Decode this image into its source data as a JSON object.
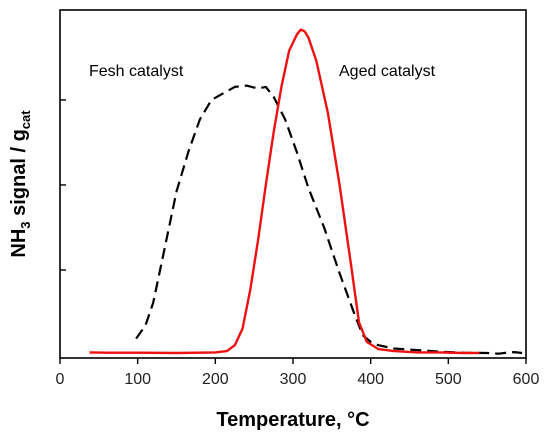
{
  "chart_data": {
    "type": "line",
    "title": "",
    "xlabel": "Temperature, °C",
    "ylabel": {
      "prefix": "NH",
      "prefix_sub": "3",
      "middle": " signal / g",
      "suffix_sub": "cat"
    },
    "xlim": [
      0,
      600
    ],
    "ylim": [
      0,
      1
    ],
    "x_ticks": [
      0,
      100,
      200,
      300,
      400,
      500,
      600
    ],
    "x_tick_labels": [
      "0",
      "100",
      "200",
      "300",
      "400",
      "500",
      "600"
    ],
    "y_ticks": [
      0.26,
      0.52,
      0.78
    ],
    "y_tick_labels_shown": false,
    "grid": false,
    "legend": "none",
    "annotations": [
      {
        "text": "Fesh catalyst",
        "x": 90,
        "y": 0.855
      },
      {
        "text": "Aged catalyst",
        "x": 332,
        "y": 0.855
      }
    ],
    "series": [
      {
        "color": "#000000",
        "dash": true,
        "x": [
          98,
          110,
          120,
          135,
          150,
          165,
          180,
          195,
          210,
          225,
          240,
          255,
          265,
          275,
          290,
          305,
          320,
          340,
          360,
          380,
          390,
          400,
          410,
          430,
          460,
          490,
          520,
          550,
          565,
          575,
          585,
          595
        ],
        "values": [
          0.05,
          0.09,
          0.16,
          0.33,
          0.5,
          0.62,
          0.72,
          0.78,
          0.8,
          0.82,
          0.824,
          0.815,
          0.82,
          0.79,
          0.72,
          0.62,
          0.51,
          0.39,
          0.25,
          0.12,
          0.06,
          0.04,
          0.03,
          0.02,
          0.015,
          0.01,
          0.007,
          0.006,
          0.004,
          0.007,
          0.009,
          0.006
        ]
      },
      {
        "color": "#ee1111",
        "dash": false,
        "x": [
          38,
          60,
          100,
          150,
          200,
          215,
          225,
          235,
          245,
          255,
          265,
          275,
          285,
          295,
          305,
          310,
          315,
          320,
          330,
          345,
          360,
          375,
          385,
          395,
          410,
          430,
          460,
          490,
          520,
          540
        ],
        "values": [
          0.008,
          0.007,
          0.007,
          0.006,
          0.008,
          0.012,
          0.03,
          0.08,
          0.2,
          0.35,
          0.52,
          0.68,
          0.82,
          0.93,
          0.98,
          0.995,
          0.99,
          0.97,
          0.9,
          0.74,
          0.52,
          0.27,
          0.1,
          0.04,
          0.018,
          0.012,
          0.008,
          0.008,
          0.006,
          0.006
        ]
      }
    ]
  }
}
